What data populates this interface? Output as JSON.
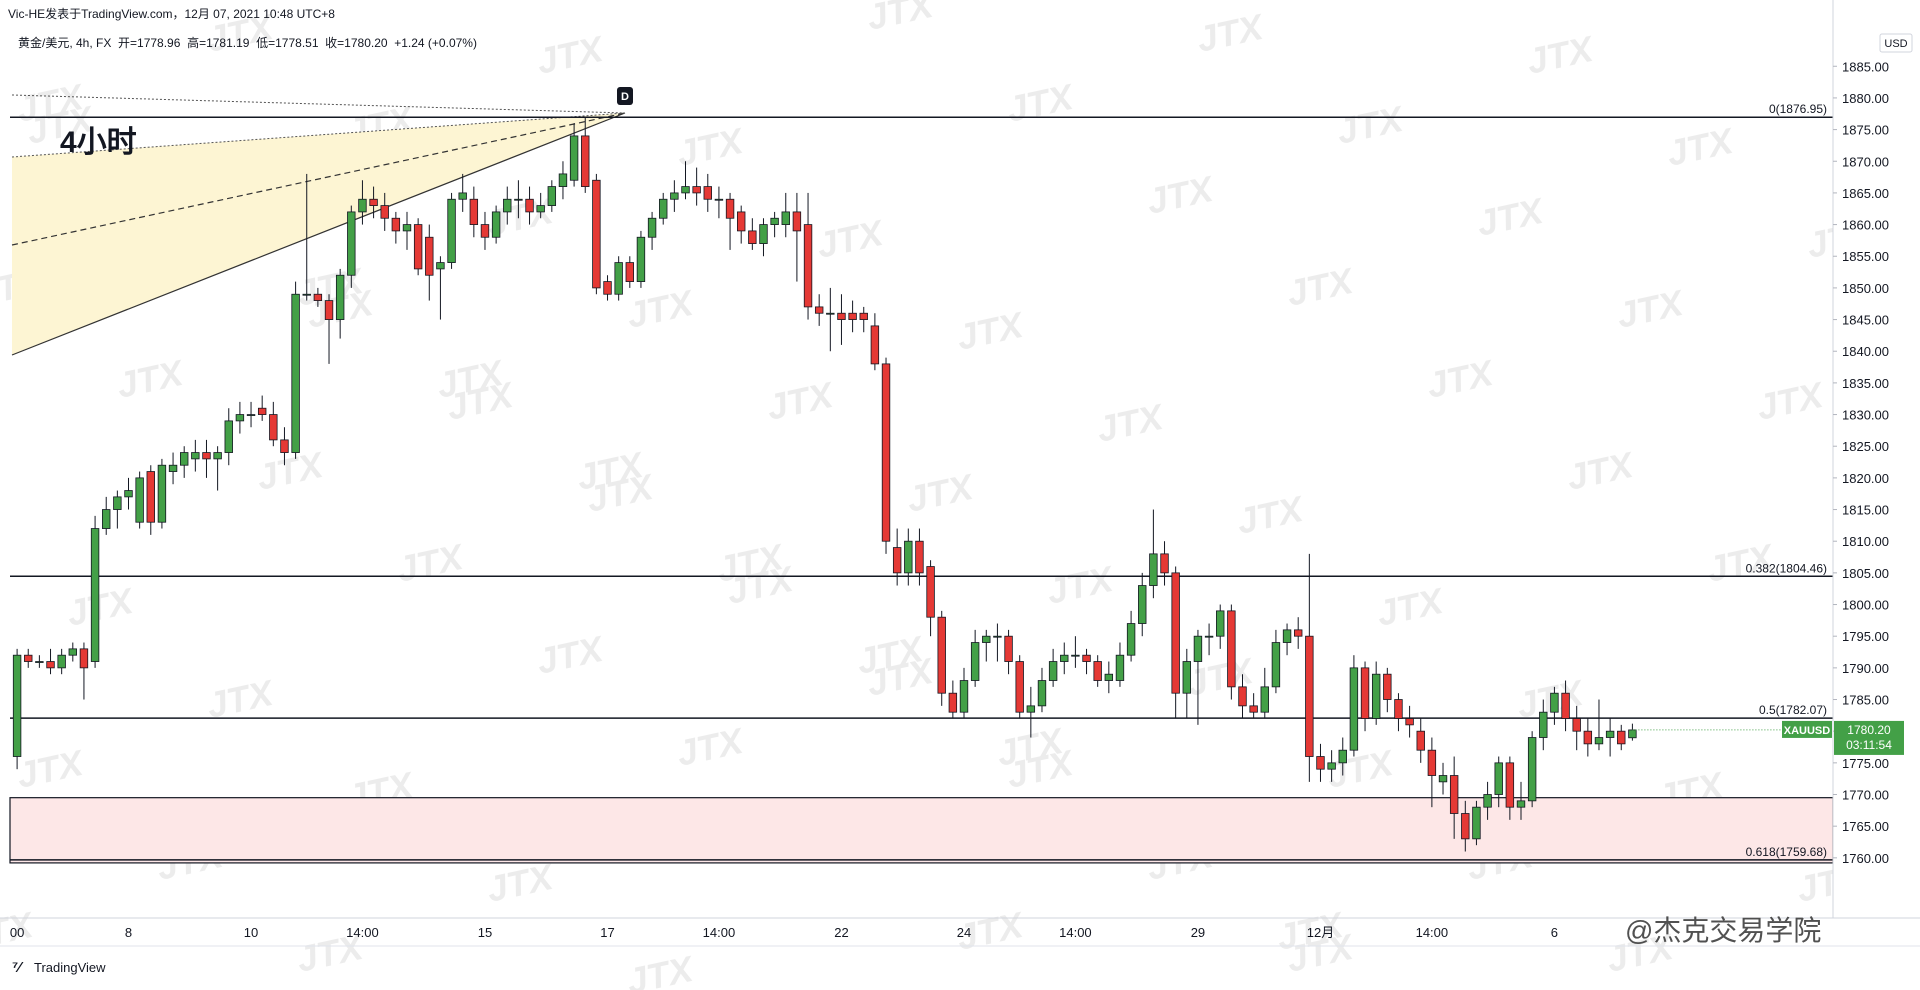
{
  "chart_data": {
    "type": "candlestick",
    "header": "Vic-HE发表于TradingView.com，12月 07, 2021 10:48 UTC+8",
    "legend_text": "黄金/美元, 4h, FX  开=1778.96  高=1781.19  低=1778.51  收=1780.20  +1.24 (+0.07%)",
    "annotation": "4小时",
    "marker": "D",
    "currency": "USD",
    "symbol": "XAUUSD",
    "last_price": {
      "value": 1780.2,
      "label": "1780.20"
    },
    "countdown": "03:11:54",
    "footer": "TradingView",
    "watermark": "JTX",
    "signature": "@杰克交易学院",
    "up_color": "#43a047",
    "down_color": "#e53935",
    "zone": [
      1759.2,
      1769.5
    ],
    "zone_color": "#fde7e7",
    "levels": [
      {
        "value": 1876.95,
        "label": "0(1876.95)"
      },
      {
        "value": 1804.46,
        "label": "0.382(1804.46)"
      },
      {
        "value": 1782.07,
        "label": "0.5(1782.07)"
      },
      {
        "value": 1759.68,
        "label": "0.618(1759.68)"
      }
    ],
    "ylim": [
      1750.5,
      1891.2
    ],
    "yticks": [
      {
        "value": 1760,
        "label": "1760.00"
      },
      {
        "value": 1765,
        "label": "1765.00"
      },
      {
        "value": 1770,
        "label": "1770.00"
      },
      {
        "value": 1775,
        "label": "1775.00"
      },
      {
        "value": 1780,
        "label": "1780.00"
      },
      {
        "value": 1785,
        "label": "1785.00"
      },
      {
        "value": 1790,
        "label": "1790.00"
      },
      {
        "value": 1795,
        "label": "1795.00"
      },
      {
        "value": 1800,
        "label": "1800.00"
      },
      {
        "value": 1805,
        "label": "1805.00"
      },
      {
        "value": 1810,
        "label": "1810.00"
      },
      {
        "value": 1815,
        "label": "1815.00"
      },
      {
        "value": 1820,
        "label": "1820.00"
      },
      {
        "value": 1825,
        "label": "1825.00"
      },
      {
        "value": 1830,
        "label": "1830.00"
      },
      {
        "value": 1835,
        "label": "1835.00"
      },
      {
        "value": 1840,
        "label": "1840.00"
      },
      {
        "value": 1845,
        "label": "1845.00"
      },
      {
        "value": 1850,
        "label": "1850.00"
      },
      {
        "value": 1855,
        "label": "1855.00"
      },
      {
        "value": 1860,
        "label": "1860.00"
      },
      {
        "value": 1865,
        "label": "1865.00"
      },
      {
        "value": 1870,
        "label": "1870.00"
      },
      {
        "value": 1875,
        "label": "1875.00"
      },
      {
        "value": 1880,
        "label": "1880.00"
      },
      {
        "value": 1885,
        "label": "1885.00"
      }
    ],
    "categories": [
      "00",
      null,
      null,
      null,
      null,
      null,
      null,
      null,
      null,
      null,
      "8",
      null,
      null,
      null,
      null,
      null,
      null,
      null,
      null,
      null,
      null,
      "10",
      null,
      null,
      null,
      null,
      null,
      null,
      null,
      null,
      null,
      "14:00",
      null,
      null,
      null,
      null,
      null,
      null,
      null,
      null,
      null,
      null,
      "15",
      null,
      null,
      null,
      null,
      null,
      null,
      null,
      null,
      null,
      null,
      "17",
      null,
      null,
      null,
      null,
      null,
      null,
      null,
      null,
      null,
      "14:00",
      null,
      null,
      null,
      null,
      null,
      null,
      null,
      null,
      null,
      null,
      "22",
      null,
      null,
      null,
      null,
      null,
      null,
      null,
      null,
      null,
      null,
      "24",
      null,
      null,
      null,
      null,
      null,
      null,
      null,
      null,
      null,
      "14:00",
      null,
      null,
      null,
      null,
      null,
      null,
      null,
      null,
      null,
      null,
      "29",
      null,
      null,
      null,
      null,
      null,
      null,
      null,
      null,
      null,
      null,
      "12月",
      null,
      null,
      null,
      null,
      null,
      null,
      null,
      null,
      null,
      "14:00",
      null,
      null,
      null,
      null,
      null,
      null,
      null,
      null,
      null,
      null,
      "6",
      null,
      null,
      null,
      null,
      null,
      null,
      null
    ],
    "ohlc": [
      [
        1776,
        1793,
        1774,
        1792
      ],
      [
        1792,
        1793,
        1790,
        1791
      ],
      [
        1791,
        1792,
        1790,
        1791
      ],
      [
        1791,
        1793,
        1789,
        1790
      ],
      [
        1790,
        1793,
        1789,
        1792
      ],
      [
        1792,
        1794,
        1791,
        1793
      ],
      [
        1793,
        1794,
        1785,
        1790
      ],
      [
        1791,
        1814,
        1790,
        1812
      ],
      [
        1812,
        1817,
        1811,
        1815
      ],
      [
        1815,
        1818,
        1812,
        1817
      ],
      [
        1817,
        1820,
        1815,
        1818
      ],
      [
        1813,
        1821,
        1812,
        1820
      ],
      [
        1821,
        1822,
        1811,
        1813
      ],
      [
        1813,
        1823,
        1812,
        1822
      ],
      [
        1821,
        1824,
        1819,
        1822
      ],
      [
        1822,
        1825,
        1820,
        1824
      ],
      [
        1823,
        1826,
        1821,
        1824
      ],
      [
        1824,
        1826,
        1820,
        1823
      ],
      [
        1823,
        1825,
        1818,
        1824
      ],
      [
        1824,
        1831,
        1822,
        1829
      ],
      [
        1829,
        1832,
        1827,
        1830
      ],
      [
        1830,
        1832,
        1828,
        1830
      ],
      [
        1831,
        1833,
        1829,
        1830
      ],
      [
        1830,
        1832,
        1825,
        1826
      ],
      [
        1826,
        1828,
        1822,
        1824
      ],
      [
        1824,
        1851,
        1823,
        1849
      ],
      [
        1849,
        1868,
        1848,
        1849
      ],
      [
        1849,
        1850,
        1847,
        1848
      ],
      [
        1848,
        1849,
        1838,
        1845
      ],
      [
        1845,
        1853,
        1842,
        1852
      ],
      [
        1852,
        1863,
        1850,
        1862
      ],
      [
        1862,
        1867,
        1860,
        1864
      ],
      [
        1864,
        1866,
        1861,
        1863
      ],
      [
        1863,
        1865,
        1859,
        1861
      ],
      [
        1861,
        1862,
        1857,
        1859
      ],
      [
        1859,
        1862,
        1856,
        1860
      ],
      [
        1860,
        1861,
        1852,
        1853
      ],
      [
        1858,
        1860,
        1848,
        1852
      ],
      [
        1853,
        1855,
        1845,
        1854
      ],
      [
        1854,
        1865,
        1853,
        1864
      ],
      [
        1864,
        1868,
        1862,
        1865
      ],
      [
        1864,
        1866,
        1858,
        1860
      ],
      [
        1860,
        1862,
        1856,
        1858
      ],
      [
        1858,
        1863,
        1857,
        1862
      ],
      [
        1862,
        1866,
        1860,
        1864
      ],
      [
        1864,
        1867,
        1861,
        1864
      ],
      [
        1864,
        1866,
        1860,
        1862
      ],
      [
        1862,
        1865,
        1861,
        1863
      ],
      [
        1863,
        1867,
        1862,
        1866
      ],
      [
        1866,
        1870,
        1864,
        1868
      ],
      [
        1867,
        1876,
        1866,
        1874
      ],
      [
        1874,
        1877,
        1865,
        1866
      ],
      [
        1867,
        1868,
        1849,
        1850
      ],
      [
        1851,
        1852,
        1848,
        1849
      ],
      [
        1849,
        1855,
        1848,
        1854
      ],
      [
        1854,
        1855,
        1850,
        1851
      ],
      [
        1851,
        1859,
        1850,
        1858
      ],
      [
        1858,
        1862,
        1856,
        1861
      ],
      [
        1861,
        1865,
        1860,
        1864
      ],
      [
        1864,
        1867,
        1862,
        1865
      ],
      [
        1865,
        1870,
        1864,
        1866
      ],
      [
        1866,
        1869,
        1863,
        1865
      ],
      [
        1866,
        1868,
        1862,
        1864
      ],
      [
        1864,
        1866,
        1861,
        1864
      ],
      [
        1864,
        1865,
        1856,
        1861
      ],
      [
        1862,
        1863,
        1857,
        1859
      ],
      [
        1859,
        1861,
        1856,
        1857
      ],
      [
        1857,
        1861,
        1855,
        1860
      ],
      [
        1860,
        1862,
        1858,
        1861
      ],
      [
        1860,
        1865,
        1858,
        1862
      ],
      [
        1862,
        1865,
        1851,
        1859
      ],
      [
        1860,
        1865,
        1845,
        1847
      ],
      [
        1847,
        1849,
        1844,
        1846
      ],
      [
        1846,
        1850,
        1840,
        1846
      ],
      [
        1846,
        1849,
        1841,
        1845
      ],
      [
        1846,
        1848,
        1843,
        1845
      ],
      [
        1846,
        1847,
        1843,
        1845
      ],
      [
        1844,
        1846,
        1837,
        1838
      ],
      [
        1838,
        1839,
        1808,
        1810
      ],
      [
        1809,
        1812,
        1803,
        1805
      ],
      [
        1805,
        1812,
        1803,
        1810
      ],
      [
        1810,
        1812,
        1803,
        1805
      ],
      [
        1806,
        1807,
        1795,
        1798
      ],
      [
        1798,
        1799,
        1784,
        1786
      ],
      [
        1786,
        1788,
        1782,
        1783
      ],
      [
        1783,
        1790,
        1782,
        1788
      ],
      [
        1788,
        1796,
        1787,
        1794
      ],
      [
        1794,
        1796,
        1791,
        1795
      ],
      [
        1795,
        1797,
        1791,
        1795
      ],
      [
        1795,
        1796,
        1789,
        1791
      ],
      [
        1791,
        1792,
        1782,
        1783
      ],
      [
        1783,
        1787,
        1779,
        1784
      ],
      [
        1784,
        1790,
        1783,
        1788
      ],
      [
        1788,
        1793,
        1787,
        1791
      ],
      [
        1791,
        1794,
        1789,
        1792
      ],
      [
        1792,
        1795,
        1790,
        1792
      ],
      [
        1792,
        1793,
        1789,
        1791
      ],
      [
        1791,
        1792,
        1787,
        1788
      ],
      [
        1788,
        1791,
        1786,
        1789
      ],
      [
        1788,
        1794,
        1787,
        1792
      ],
      [
        1792,
        1799,
        1791,
        1797
      ],
      [
        1797,
        1805,
        1795,
        1803
      ],
      [
        1803,
        1815,
        1801,
        1808
      ],
      [
        1808,
        1810,
        1803,
        1805
      ],
      [
        1805,
        1806,
        1782,
        1786
      ],
      [
        1786,
        1793,
        1782,
        1791
      ],
      [
        1791,
        1796,
        1781,
        1795
      ],
      [
        1795,
        1797,
        1792,
        1795
      ],
      [
        1795,
        1800,
        1793,
        1799
      ],
      [
        1799,
        1800,
        1785,
        1787
      ],
      [
        1787,
        1789,
        1782,
        1784
      ],
      [
        1784,
        1786,
        1782,
        1783
      ],
      [
        1783,
        1790,
        1782,
        1787
      ],
      [
        1787,
        1796,
        1786,
        1794
      ],
      [
        1794,
        1797,
        1792,
        1796
      ],
      [
        1796,
        1798,
        1793,
        1795
      ],
      [
        1795,
        1808,
        1772,
        1776
      ],
      [
        1776,
        1778,
        1772,
        1774
      ],
      [
        1774,
        1777,
        1772,
        1775
      ],
      [
        1775,
        1779,
        1773,
        1777
      ],
      [
        1777,
        1792,
        1776,
        1790
      ],
      [
        1790,
        1791,
        1780,
        1782
      ],
      [
        1782,
        1791,
        1781,
        1789
      ],
      [
        1789,
        1790,
        1783,
        1785
      ],
      [
        1785,
        1786,
        1780,
        1782
      ],
      [
        1782,
        1784,
        1779,
        1781
      ],
      [
        1780,
        1782,
        1775,
        1777
      ],
      [
        1777,
        1779,
        1768,
        1773
      ],
      [
        1772,
        1775,
        1770,
        1773
      ],
      [
        1773,
        1776,
        1763,
        1767
      ],
      [
        1767,
        1769,
        1761,
        1763
      ],
      [
        1763,
        1769,
        1762,
        1768
      ],
      [
        1768,
        1772,
        1766,
        1770
      ],
      [
        1770,
        1776,
        1768,
        1775
      ],
      [
        1775,
        1776,
        1766,
        1768
      ],
      [
        1768,
        1772,
        1766,
        1769
      ],
      [
        1769,
        1780,
        1768,
        1779
      ],
      [
        1779,
        1785,
        1777,
        1783
      ],
      [
        1783,
        1787,
        1781,
        1786
      ],
      [
        1786,
        1788,
        1780,
        1782
      ],
      [
        1782,
        1784,
        1777,
        1780
      ],
      [
        1780,
        1782,
        1776,
        1778
      ],
      [
        1778,
        1785,
        1777,
        1779
      ],
      [
        1779,
        1782,
        1776,
        1780
      ],
      [
        1780,
        1781,
        1777,
        1778
      ],
      [
        1778.96,
        1781.19,
        1778.51,
        1780.2
      ]
    ]
  }
}
